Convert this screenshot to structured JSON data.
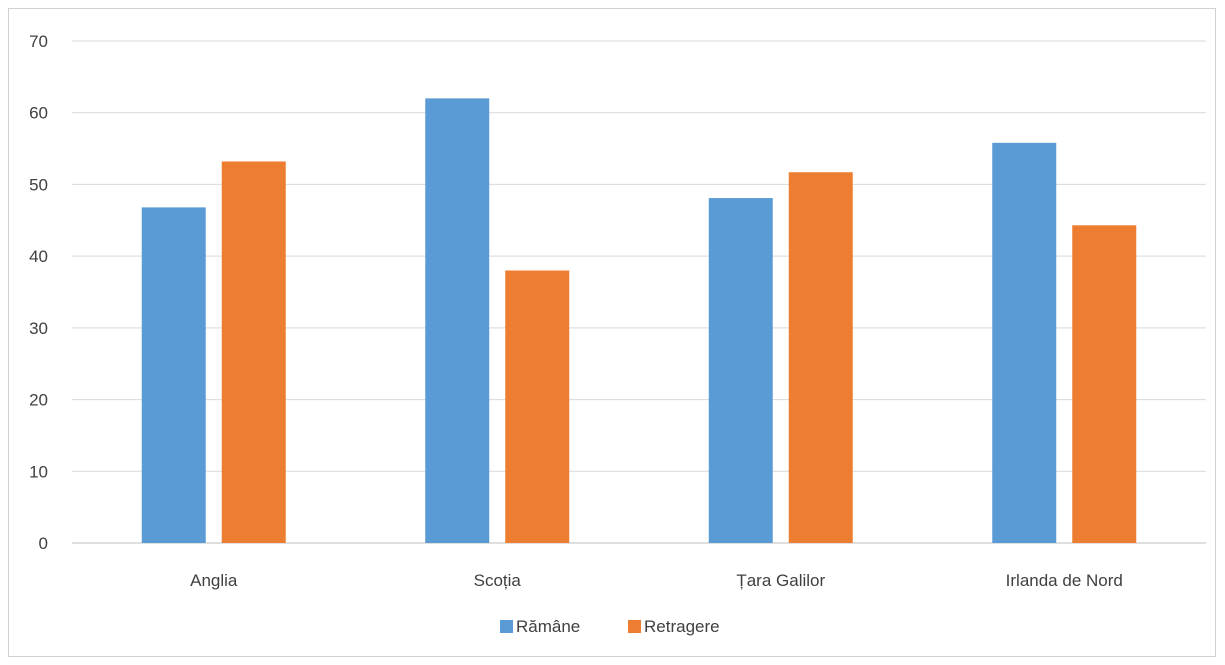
{
  "chart_data": {
    "type": "bar",
    "categories": [
      "Anglia",
      "Scoția",
      "Țara Galilor",
      "Irlanda de Nord"
    ],
    "series": [
      {
        "name": "Rămâne",
        "values": [
          46.8,
          62.0,
          48.1,
          55.8
        ],
        "color": "#5b9bd5"
      },
      {
        "name": "Retragere",
        "values": [
          53.2,
          38.0,
          51.7,
          44.3
        ],
        "color": "#ed7d31"
      }
    ],
    "ylim": [
      0,
      70
    ],
    "yticks": [
      "0",
      "10",
      "20",
      "30",
      "40",
      "50",
      "60",
      "70"
    ],
    "grid": true,
    "legend_position": "bottom"
  }
}
